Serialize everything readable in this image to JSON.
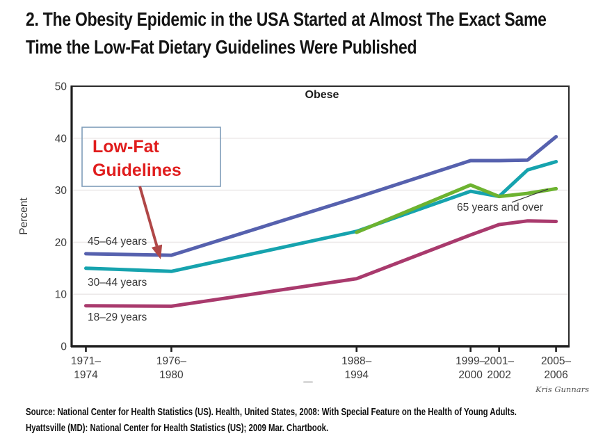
{
  "heading": {
    "lines": [
      "2. The Obesity Epidemic in the USA Started at Almost The Exact Same",
      "Time the Low-Fat Dietary Guidelines Were Published"
    ]
  },
  "credit": "Kris Gunnars",
  "source": {
    "lines": [
      "Source: National Center for Health Statistics (US). Health, United States, 2008: With Special Feature on the Health of Young Adults.",
      "Hyattsville (MD): National Center for Health Statistics (US); 2009 Mar. Chartbook."
    ]
  },
  "chart_data": {
    "type": "line",
    "title": "Obese",
    "ylabel": "Percent",
    "ylim": [
      0,
      50
    ],
    "yticks": [
      0,
      10,
      20,
      30,
      40,
      50
    ],
    "grid": true,
    "xlim": [
      1971.5,
      2006.4
    ],
    "xticks": [
      {
        "x": 1972.5,
        "label": [
          "1971–",
          "1974"
        ]
      },
      {
        "x": 1978.5,
        "label": [
          "1976–",
          "1980"
        ]
      },
      {
        "x": 1991.5,
        "label": [
          "1988–",
          "1994"
        ]
      },
      {
        "x": 1999.5,
        "label": [
          "1999–",
          "2000"
        ]
      },
      {
        "x": 2001.5,
        "label": [
          "2001–",
          "2002"
        ]
      },
      {
        "x": 2005.5,
        "label": [
          "2005–",
          "2006"
        ]
      }
    ],
    "series": [
      {
        "name": "45–64 years",
        "color": "#5661ae",
        "points": [
          [
            1972.5,
            17.8
          ],
          [
            1978.5,
            17.5
          ],
          [
            1991.5,
            28.6
          ],
          [
            1999.5,
            35.7
          ],
          [
            2001.5,
            35.7
          ],
          [
            2003.5,
            35.8
          ],
          [
            2005.5,
            40.3
          ]
        ]
      },
      {
        "name": "30–44 years",
        "color": "#16a3ae",
        "points": [
          [
            1972.5,
            15.0
          ],
          [
            1978.5,
            14.4
          ],
          [
            1991.5,
            22.1
          ],
          [
            1999.5,
            29.8
          ],
          [
            2001.5,
            28.8
          ],
          [
            2003.5,
            33.9
          ],
          [
            2005.5,
            35.5
          ]
        ]
      },
      {
        "name": "65 years and over",
        "color": "#6db330",
        "points": [
          [
            1991.5,
            21.9
          ],
          [
            1999.5,
            31.0
          ],
          [
            2001.5,
            28.8
          ],
          [
            2003.5,
            29.4
          ],
          [
            2005.5,
            30.3
          ]
        ]
      },
      {
        "name": "18–29 years",
        "color": "#a93a6d",
        "points": [
          [
            1972.5,
            7.8
          ],
          [
            1978.5,
            7.7
          ],
          [
            1991.5,
            13.0
          ],
          [
            1999.5,
            21.4
          ],
          [
            2001.5,
            23.4
          ],
          [
            2003.5,
            24.1
          ],
          [
            2005.5,
            24.0
          ]
        ]
      }
    ],
    "annotation": {
      "text_lines": [
        "Low-Fat",
        "Guidelines"
      ],
      "text_color": "#e01d1d",
      "box_border_color": "#7f9db9",
      "arrow_color": "#b04747",
      "points_to": "30–44 years line at 1976–1980"
    }
  }
}
